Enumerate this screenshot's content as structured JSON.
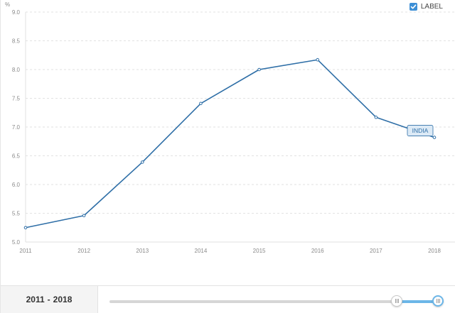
{
  "controls": {
    "label_toggle": {
      "text": "LABEL",
      "checked": true
    }
  },
  "chart_data": {
    "type": "line",
    "x": [
      "2011",
      "2012",
      "2013",
      "2014",
      "2015",
      "2016",
      "2017",
      "2018"
    ],
    "series": [
      {
        "name": "INDIA",
        "values": [
          5.25,
          5.46,
          6.39,
          7.41,
          8.0,
          8.17,
          7.17,
          6.82
        ],
        "color": "#2f6fa7"
      }
    ],
    "yunit": "%",
    "ylim": [
      5.0,
      9.0
    ],
    "yticks": [
      "5.0",
      "5.5",
      "6.0",
      "6.5",
      "7.0",
      "7.5",
      "8.0",
      "8.5",
      "9.0"
    ],
    "grid": true
  },
  "footer": {
    "range_start": "2011",
    "range_sep": "-",
    "range_end": "2018",
    "slider": {
      "start_fraction": 0.86,
      "end_fraction": 1.0
    }
  },
  "colors": {
    "series_label_bg": "#dceaf6",
    "series_label_border": "#2f6fa7",
    "slider_accent": "#6cb6e8"
  }
}
